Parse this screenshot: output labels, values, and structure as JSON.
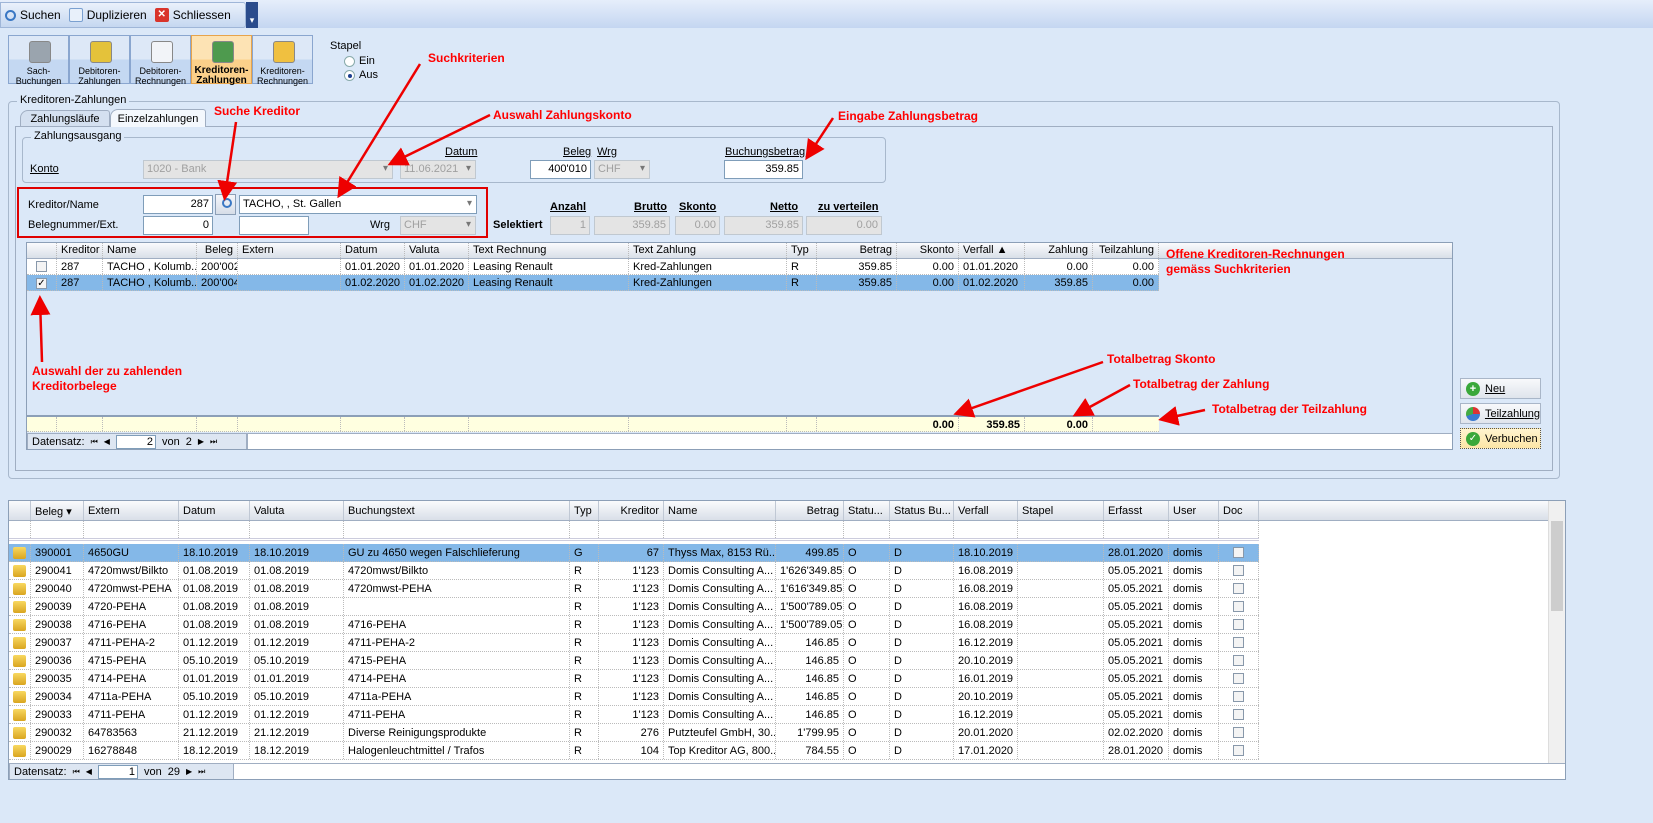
{
  "toolbar": {
    "suchen": "Suchen",
    "duplizieren": "Duplizieren",
    "schliessen": "Schliessen"
  },
  "modules": [
    {
      "label1": "Sach-",
      "label2": "Buchungen",
      "icon": "calculator-icon"
    },
    {
      "label1": "Debitoren-",
      "label2": "Zahlungen",
      "icon": "coins-icon"
    },
    {
      "label1": "Debitoren-",
      "label2": "Rechnungen",
      "icon": "invoice-icon"
    },
    {
      "label1": "Kreditoren-",
      "label2": "Zahlungen",
      "icon": "money-icon",
      "active": true
    },
    {
      "label1": "Kreditoren-",
      "label2": "Rechnungen",
      "icon": "basket-icon"
    }
  ],
  "stapel": {
    "label": "Stapel",
    "ein": "Ein",
    "aus": "Aus",
    "selected": "Aus"
  },
  "group_title": "Kreditoren-Zahlungen",
  "tabs": [
    {
      "label": "Zahlungsläufe"
    },
    {
      "label": "Einzelzahlungen",
      "active": true
    }
  ],
  "zahlungsausgang": {
    "title": "Zahlungsausgang",
    "konto_label": "Konto",
    "konto_value": "1020 - Bank",
    "datum_label": "Datum",
    "datum_value": "11.06.2021",
    "beleg_label": "Beleg",
    "beleg_value": "400'010",
    "wrg_label": "Wrg",
    "wrg_value": "CHF",
    "betrag_label": "Buchungsbetrag",
    "betrag_value": "359.85"
  },
  "suche": {
    "kreditor_label": "Kreditor/Name",
    "kreditor_value": "287",
    "name_value": "TACHO, , St. Gallen",
    "beleg_label": "Belegnummer/Ext.",
    "beleg_value": "0",
    "extern_value": "",
    "wrg_label": "Wrg",
    "wrg_value": "CHF"
  },
  "selektiert": {
    "label": "Selektiert",
    "anzahl_label": "Anzahl",
    "anzahl": "1",
    "brutto_label": "Brutto",
    "brutto": "359.85",
    "skonto_label": "Skonto",
    "skonto": "0.00",
    "netto_label": "Netto",
    "netto": "359.85",
    "verteilen_label": "zu verteilen",
    "verteilen": "0.00"
  },
  "grid1": {
    "columns": [
      "",
      "Kreditor",
      "Name",
      "Beleg",
      "Extern",
      "Datum",
      "Valuta",
      "Text Rechnung",
      "Text Zahlung",
      "Typ",
      "Betrag",
      "Skonto",
      "Verfall ▲",
      "Zahlung",
      "Teilzahlung"
    ],
    "rows": [
      {
        "checked": false,
        "cells": [
          "287",
          "TACHO , Kolumb...",
          "200'002",
          "",
          "01.01.2020",
          "01.01.2020",
          "Leasing Renault",
          "Kred-Zahlungen",
          "R",
          "359.85",
          "0.00",
          "01.01.2020",
          "0.00",
          "0.00"
        ]
      },
      {
        "checked": true,
        "selected": true,
        "cells": [
          "287",
          "TACHO , Kolumb...",
          "200'004",
          "",
          "01.02.2020",
          "01.02.2020",
          "Leasing Renault",
          "Kred-Zahlungen",
          "R",
          "359.85",
          "0.00",
          "01.02.2020",
          "359.85",
          "0.00"
        ]
      }
    ],
    "totals": {
      "skonto": "0.00",
      "zahlung": "359.85",
      "teilzahlung": "0.00"
    },
    "nav": {
      "label": "Datensatz:",
      "current": "2",
      "of": "von",
      "total": "2"
    }
  },
  "buttons": {
    "neu": "Neu",
    "teilzahlung": "Teilzahlung",
    "verbuchen": "Verbuchen"
  },
  "annotations": {
    "suchkriterien": "Suchkriterien",
    "suche_kreditor": "Suche Kreditor",
    "auswahl_konto": "Auswahl Zahlungskonto",
    "eingabe_betrag": "Eingabe Zahlungsbetrag",
    "offene1": "Offene Kreditoren-Rechnungen",
    "offene2": "gemäss Suchkriterien",
    "auswahl1": "Auswahl der zu zahlenden",
    "auswahl2": "Kreditorbelege",
    "total_skonto": "Totalbetrag Skonto",
    "total_zahlung": "Totalbetrag der Zahlung",
    "total_teil": "Totalbetrag der Teilzahlung"
  },
  "grid2": {
    "columns": [
      "",
      "Beleg ▾",
      "Extern",
      "Datum",
      "Valuta",
      "Buchungstext",
      "Typ",
      "Kreditor",
      "Name",
      "Betrag",
      "Statu...",
      "Status Bu...",
      "Verfall",
      "Stapel",
      "Erfasst",
      "User",
      "Doc"
    ],
    "rows": [
      [
        "390001",
        "4650GU",
        "18.10.2019",
        "18.10.2019",
        "GU zu 4650 wegen Falschlieferung",
        "G",
        "67",
        "Thyss Max, 8153 Rü...",
        "499.85",
        "O",
        "D",
        "18.10.2019",
        "",
        "28.01.2020",
        "domis"
      ],
      [
        "290041",
        "4720mwst/Bilkto",
        "01.08.2019",
        "01.08.2019",
        "4720mwst/Bilkto",
        "R",
        "1'123",
        "Domis Consulting A...",
        "1'626'349.85",
        "O",
        "D",
        "16.08.2019",
        "",
        "05.05.2021",
        "domis"
      ],
      [
        "290040",
        "4720mwst-PEHA",
        "01.08.2019",
        "01.08.2019",
        "4720mwst-PEHA",
        "R",
        "1'123",
        "Domis Consulting A...",
        "1'616'349.85",
        "O",
        "D",
        "16.08.2019",
        "",
        "05.05.2021",
        "domis"
      ],
      [
        "290039",
        "4720-PEHA",
        "01.08.2019",
        "01.08.2019",
        "",
        "R",
        "1'123",
        "Domis Consulting A...",
        "1'500'789.05",
        "O",
        "D",
        "16.08.2019",
        "",
        "05.05.2021",
        "domis"
      ],
      [
        "290038",
        "4716-PEHA",
        "01.08.2019",
        "01.08.2019",
        "4716-PEHA",
        "R",
        "1'123",
        "Domis Consulting A...",
        "1'500'789.05",
        "O",
        "D",
        "16.08.2019",
        "",
        "05.05.2021",
        "domis"
      ],
      [
        "290037",
        "4711-PEHA-2",
        "01.12.2019",
        "01.12.2019",
        "4711-PEHA-2",
        "R",
        "1'123",
        "Domis Consulting A...",
        "146.85",
        "O",
        "D",
        "16.12.2019",
        "",
        "05.05.2021",
        "domis"
      ],
      [
        "290036",
        "4715-PEHA",
        "05.10.2019",
        "05.10.2019",
        "4715-PEHA",
        "R",
        "1'123",
        "Domis Consulting A...",
        "146.85",
        "O",
        "D",
        "20.10.2019",
        "",
        "05.05.2021",
        "domis"
      ],
      [
        "290035",
        "4714-PEHA",
        "01.01.2019",
        "01.01.2019",
        "4714-PEHA",
        "R",
        "1'123",
        "Domis Consulting A...",
        "146.85",
        "O",
        "D",
        "16.01.2019",
        "",
        "05.05.2021",
        "domis"
      ],
      [
        "290034",
        "4711a-PEHA",
        "05.10.2019",
        "05.10.2019",
        "4711a-PEHA",
        "R",
        "1'123",
        "Domis Consulting A...",
        "146.85",
        "O",
        "D",
        "20.10.2019",
        "",
        "05.05.2021",
        "domis"
      ],
      [
        "290033",
        "4711-PEHA",
        "01.12.2019",
        "01.12.2019",
        "4711-PEHA",
        "R",
        "1'123",
        "Domis Consulting A...",
        "146.85",
        "O",
        "D",
        "16.12.2019",
        "",
        "05.05.2021",
        "domis"
      ],
      [
        "290032",
        "64783563",
        "21.12.2019",
        "21.12.2019",
        "Diverse Reinigungsprodukte",
        "R",
        "276",
        "Putzteufel GmbH, 30...",
        "1'799.95",
        "O",
        "D",
        "20.01.2020",
        "",
        "02.02.2020",
        "domis"
      ],
      [
        "290029",
        "16278848",
        "18.12.2019",
        "18.12.2019",
        "Halogenleuchtmittel / Trafos",
        "R",
        "104",
        "Top Kreditor AG, 800...",
        "784.55",
        "O",
        "D",
        "17.01.2020",
        "",
        "28.01.2020",
        "domis"
      ]
    ],
    "nav": {
      "label": "Datensatz:",
      "current": "1",
      "of": "von",
      "total": "29"
    }
  },
  "colors": {
    "accent": "#84b8e8",
    "annotation": "#ff0000",
    "background": "#dbe8f8"
  }
}
